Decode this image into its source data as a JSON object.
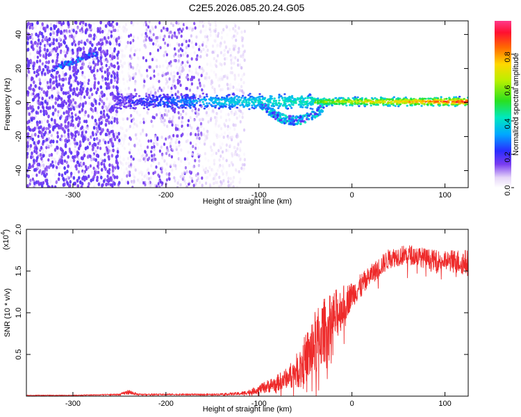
{
  "title": "C2E5.2026.085.20.24.G05",
  "colors": {
    "line": "#ee2a2a",
    "spec_dark": "#4a00c8",
    "spec_light": "#d9c7f5",
    "axis": "#000000"
  },
  "chart_data": [
    {
      "type": "heatmap",
      "title": "C2E5.2026.085.20.24.G05",
      "xlabel": "Height of straight line (km)",
      "ylabel": "Frequency (Hz)",
      "xlim": [
        -350,
        125
      ],
      "ylim": [
        -50,
        48
      ],
      "xticks": [
        -300,
        -200,
        -100,
        0,
        100
      ],
      "xtick_labels": [
        "-300",
        "-200",
        "-100",
        "0",
        "100"
      ],
      "yticks": [
        -40,
        -20,
        0,
        20,
        40
      ],
      "ytick_labels": [
        "-40",
        "-20",
        "0",
        "20",
        "40"
      ],
      "colorbar": {
        "label": "Normalized spectral amplitude",
        "range": [
          0,
          1
        ],
        "ticks": [
          0.0,
          0.2,
          0.4,
          0.6,
          0.8
        ],
        "tick_labels": [
          "0.0",
          "0.2",
          "0.4",
          "0.6",
          "0.8"
        ]
      },
      "features": [
        {
          "name": "carrier_line",
          "freq_hz": 0.5,
          "x_range": [
            -255,
            125
          ],
          "amplitude": [
            0.15,
            0.95
          ]
        },
        {
          "name": "drifting_branch",
          "x_range": [
            -320,
            -270
          ],
          "freq_range_hz": [
            20,
            30
          ],
          "amplitude": 0.2
        },
        {
          "name": "dipping_trace",
          "x_range": [
            -100,
            -30
          ],
          "freq_range_hz": [
            -12,
            0
          ],
          "amplitude": 0.3
        },
        {
          "name": "noise_floor",
          "x_range": [
            -350,
            -115
          ],
          "freq_range_hz": [
            -50,
            48
          ],
          "amplitude": [
            0.0,
            0.15
          ]
        }
      ]
    },
    {
      "type": "line",
      "xlabel": "Height of straight line (km)",
      "ylabel": "SNR (10 * v/v)",
      "scale_label": "(x10^4)",
      "scale_base": "(x10",
      "scale_exp": "4",
      "scale_close": ")",
      "xlim": [
        -350,
        125
      ],
      "ylim": [
        0,
        2.0
      ],
      "xticks": [
        -300,
        -200,
        -100,
        0,
        100
      ],
      "xtick_labels": [
        "-300",
        "-200",
        "-100",
        "0",
        "100"
      ],
      "yticks": [
        0.5,
        1.0,
        1.5,
        2.0
      ],
      "ytick_labels": [
        "0.5",
        "1.0",
        "1.5",
        "2.0"
      ],
      "series": [
        {
          "name": "SNR",
          "x": [
            -350,
            -300,
            -250,
            -240,
            -230,
            -200,
            -150,
            -120,
            -110,
            -100,
            -90,
            -80,
            -70,
            -60,
            -55,
            -50,
            -45,
            -40,
            -35,
            -30,
            -25,
            -20,
            -15,
            -10,
            -5,
            0,
            10,
            20,
            30,
            40,
            50,
            60,
            70,
            80,
            90,
            100,
            110,
            125
          ],
          "values": [
            0.01,
            0.01,
            0.02,
            0.05,
            0.02,
            0.02,
            0.02,
            0.03,
            0.05,
            0.08,
            0.12,
            0.16,
            0.22,
            0.3,
            0.35,
            0.45,
            0.52,
            0.62,
            0.7,
            0.78,
            0.85,
            0.92,
            1.0,
            1.08,
            1.15,
            1.22,
            1.32,
            1.45,
            1.55,
            1.65,
            1.68,
            1.7,
            1.68,
            1.65,
            1.63,
            1.62,
            1.62,
            1.6
          ],
          "noise_amplitude": [
            0.005,
            0.005,
            0.01,
            0.03,
            0.01,
            0.01,
            0.01,
            0.02,
            0.03,
            0.05,
            0.08,
            0.1,
            0.12,
            0.2,
            0.25,
            0.3,
            0.35,
            0.4,
            0.4,
            0.4,
            0.35,
            0.35,
            0.3,
            0.25,
            0.2,
            0.15,
            0.15,
            0.12,
            0.12,
            0.12,
            0.12,
            0.12,
            0.12,
            0.12,
            0.12,
            0.12,
            0.14,
            0.16
          ]
        }
      ]
    }
  ]
}
